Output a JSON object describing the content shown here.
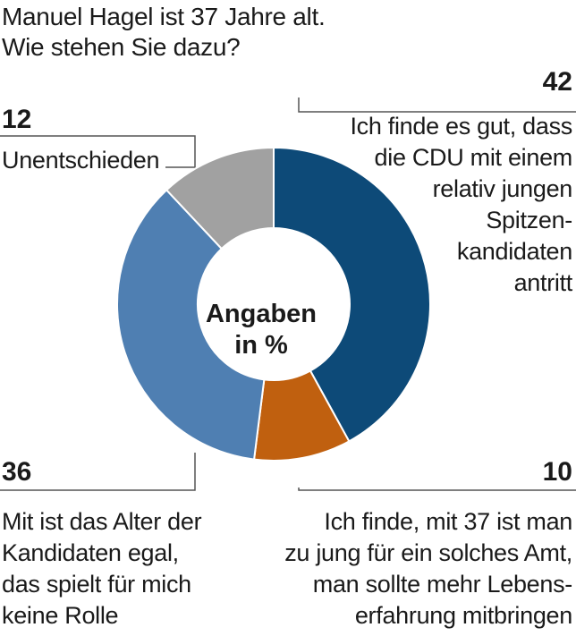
{
  "chart_data": {
    "type": "pie",
    "variant": "donut",
    "title_lines": [
      "Manuel Hagel ist 37 Jahre alt.",
      "Wie stehen Sie dazu?"
    ],
    "center_label_lines": [
      "Angaben",
      "in %"
    ],
    "unit": "%",
    "slices": [
      {
        "value": 42,
        "label_lines": [
          "Ich finde es gut, dass",
          "die CDU mit einem",
          "relativ jungen",
          "Spitzen-",
          "kandidaten",
          "antritt"
        ],
        "color": "#0d4a78"
      },
      {
        "value": 10,
        "label_lines": [
          "Ich finde, mit 37 ist man",
          "zu jung für ein solches Amt,",
          "man sollte mehr Lebens-",
          "erfahrung mitbringen"
        ],
        "color": "#c0600f"
      },
      {
        "value": 36,
        "label_lines": [
          "Mit ist das Alter der",
          "Kandidaten egal,",
          "das spielt für mich",
          "keine Rolle"
        ],
        "color": "#4f7fb2"
      },
      {
        "value": 12,
        "label_lines": [
          "Unentschieden"
        ],
        "color": "#a1a1a1"
      }
    ]
  }
}
